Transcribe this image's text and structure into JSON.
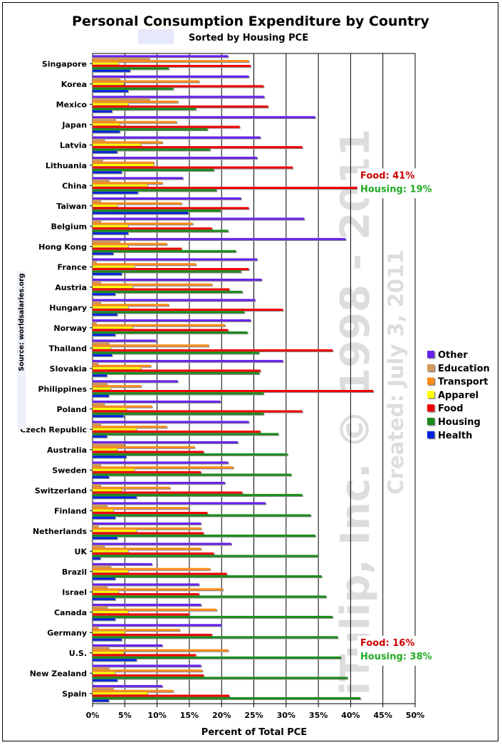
{
  "chart_data": {
    "type": "bar",
    "orientation": "horizontal",
    "title": "Personal Consumption Expenditure by Country",
    "subtitle": "Sorted by Housing PCE",
    "xlabel": "Percent of Total PCE",
    "ylabel": "",
    "xlim": [
      0,
      50
    ],
    "x_ticks": [
      "0%",
      "5%",
      "10%",
      "15%",
      "20%",
      "25%",
      "30%",
      "35%",
      "40%",
      "45%",
      "50%"
    ],
    "grid": "vertical",
    "legend_position": "right",
    "source": "Source: worldsalaries.org",
    "watermark": "iTulip, Inc. © 1998 - 2011",
    "created": "Created: July 3, 2011",
    "categories": [
      "Singapore",
      "Korea",
      "Mexico",
      "Japan",
      "Latvia",
      "Lithuania",
      "China",
      "Taiwan",
      "Belgium",
      "Hong Kong",
      "France",
      "Austria",
      "Hungary",
      "Norway",
      "Thailand",
      "Slovakia",
      "Philippines",
      "Poland",
      "Czech Republic",
      "Australia",
      "Sweden",
      "Switzerland",
      "Finland",
      "Netherlands",
      "UK",
      "Brazil",
      "Israel",
      "Canada",
      "Germany",
      "U.S.",
      "New Zealand",
      "Spain"
    ],
    "series": [
      {
        "name": "Other",
        "color": "#6622ee",
        "values": [
          21,
          24.2,
          26.6,
          34.5,
          26,
          25.5,
          14,
          23,
          32.8,
          39.2,
          25.5,
          26.2,
          25.2,
          24.5,
          9.8,
          29.5,
          13.2,
          19.8,
          24.2,
          22.5,
          21,
          20.5,
          26.8,
          16.8,
          21.5,
          9.2,
          16.5,
          16.8,
          20,
          10.8,
          16.8,
          10.8
        ]
      },
      {
        "name": "Education",
        "color": "#d49a5a",
        "values": [
          8.8,
          4.2,
          8.8,
          3.5,
          1.8,
          1.5,
          2.5,
          1.2,
          1.2,
          4.2,
          0.5,
          1.2,
          1.2,
          0.5,
          2.5,
          0.8,
          2.2,
          1.8,
          1.2,
          4.8,
          1.2,
          1.2,
          2.2,
          0.8,
          1.8,
          2.8,
          2.2,
          2.2,
          0.8,
          2.5,
          2.5,
          3.2
        ]
      },
      {
        "name": "Transport",
        "color": "#ff8c1a",
        "values": [
          24.2,
          16.5,
          13.2,
          13,
          10.8,
          9.5,
          10.8,
          13.8,
          15.5,
          11.5,
          16,
          18.5,
          11.8,
          20.5,
          18,
          9,
          7.5,
          9.2,
          11.5,
          15.8,
          21.8,
          12,
          14.8,
          16.8,
          16.8,
          18.2,
          20.2,
          19.2,
          13.5,
          21,
          17,
          12.5
        ]
      },
      {
        "name": "Apparel",
        "color": "#ffff00",
        "values": [
          4,
          4.8,
          5.5,
          4.2,
          7.5,
          9.5,
          8.5,
          3.8,
          5.5,
          5.5,
          6.5,
          6.2,
          5.5,
          6.2,
          2.8,
          7.5,
          2.8,
          5.2,
          6.8,
          3.8,
          6.5,
          4.5,
          3.2,
          6.8,
          5.5,
          5.5,
          4,
          5.5,
          5,
          4.8,
          3.5,
          8.5
        ]
      },
      {
        "name": "Food",
        "color": "#ee0000",
        "values": [
          24.5,
          26.5,
          27.2,
          22.8,
          32.5,
          31,
          41,
          24.2,
          18.5,
          13.8,
          24.2,
          21.2,
          29.5,
          21,
          37.2,
          26,
          43.5,
          32.5,
          26,
          17.2,
          16.8,
          23.2,
          17.8,
          17.2,
          18.8,
          20.8,
          16.5,
          15,
          18.5,
          16,
          17.2,
          21.2
        ]
      },
      {
        "name": "Housing",
        "color": "#1a8c1a",
        "values": [
          11.8,
          12.5,
          16,
          17.8,
          18.2,
          18.8,
          19.2,
          19.8,
          21,
          22.2,
          23,
          23.2,
          23.5,
          24,
          25.8,
          25.8,
          26.5,
          26.5,
          28.8,
          30.2,
          30.8,
          32.5,
          33.8,
          34.5,
          35,
          35.5,
          36.2,
          37.2,
          38,
          38.5,
          39.5,
          41.5
        ]
      },
      {
        "name": "Health",
        "color": "#0022dd",
        "values": [
          5.8,
          5.5,
          3,
          4.2,
          3.8,
          4.5,
          7,
          14.8,
          5.5,
          3.2,
          4.5,
          3.5,
          3.8,
          3.5,
          3,
          2.2,
          2.5,
          4.8,
          2.2,
          5.2,
          2.5,
          6.8,
          3.5,
          3.8,
          1.2,
          3.5,
          3.5,
          3.5,
          4.5,
          6.8,
          3.8,
          2.5
        ]
      }
    ],
    "annotations": [
      {
        "category": "China",
        "lines": [
          {
            "text": "Food: 41%",
            "color": "#cc0000"
          },
          {
            "text": "Housing: 19%",
            "color": "#22aa22"
          }
        ]
      },
      {
        "category": "U.S.",
        "lines": [
          {
            "text": "Food: 16%",
            "color": "#cc0000"
          },
          {
            "text": "Housing: 38%",
            "color": "#22aa22"
          }
        ]
      }
    ]
  }
}
